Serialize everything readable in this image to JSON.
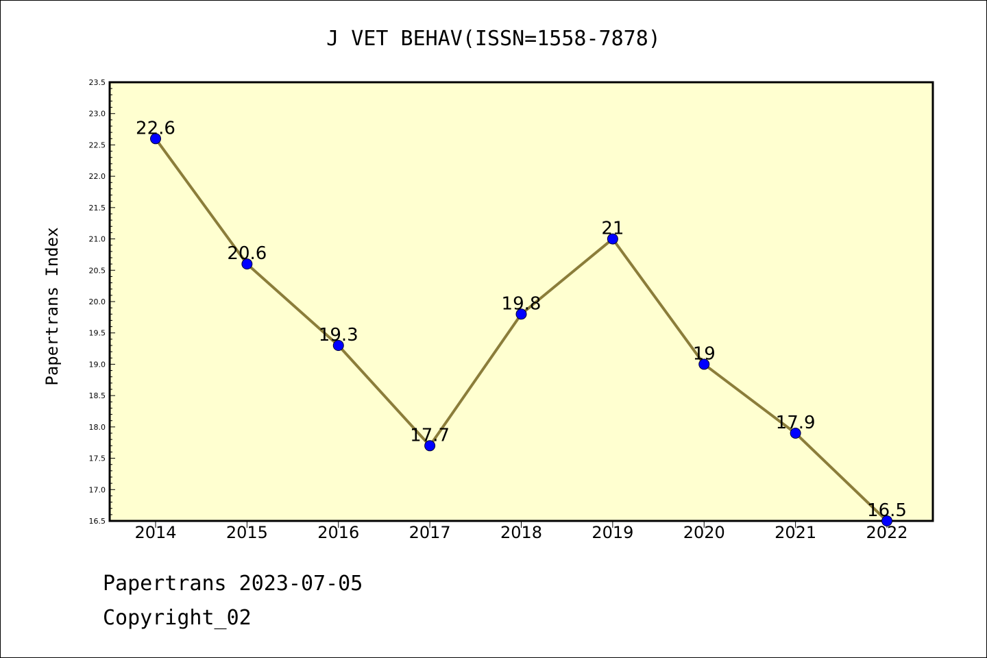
{
  "chart_data": {
    "type": "line",
    "title": "J VET BEHAV(ISSN=1558-7878)",
    "xlabel": "",
    "ylabel": "Papertrans Index",
    "categories": [
      "2014",
      "2015",
      "2016",
      "2017",
      "2018",
      "2019",
      "2020",
      "2021",
      "2022"
    ],
    "values": [
      22.6,
      20.6,
      19.3,
      17.7,
      19.8,
      21,
      19,
      17.9,
      16.5
    ],
    "data_labels": [
      "22.6",
      "20.6",
      "19.3",
      "17.7",
      "19.8",
      "21",
      "19",
      "17.9",
      "16.5"
    ],
    "ylim": [
      16.5,
      23.5
    ],
    "yticks": [
      "16.5",
      "17.0",
      "17.5",
      "18.0",
      "18.5",
      "19.0",
      "19.5",
      "20.0",
      "20.5",
      "21.0",
      "21.5",
      "22.0",
      "22.5",
      "23.0",
      "23.5"
    ],
    "grid": false,
    "colors": {
      "plot_background": "#ffffd0",
      "line": "#8b7d3a",
      "marker": "#0000ff"
    }
  },
  "footer": {
    "line1": "Papertrans 2023-07-05",
    "line2": "Copyright_02"
  }
}
